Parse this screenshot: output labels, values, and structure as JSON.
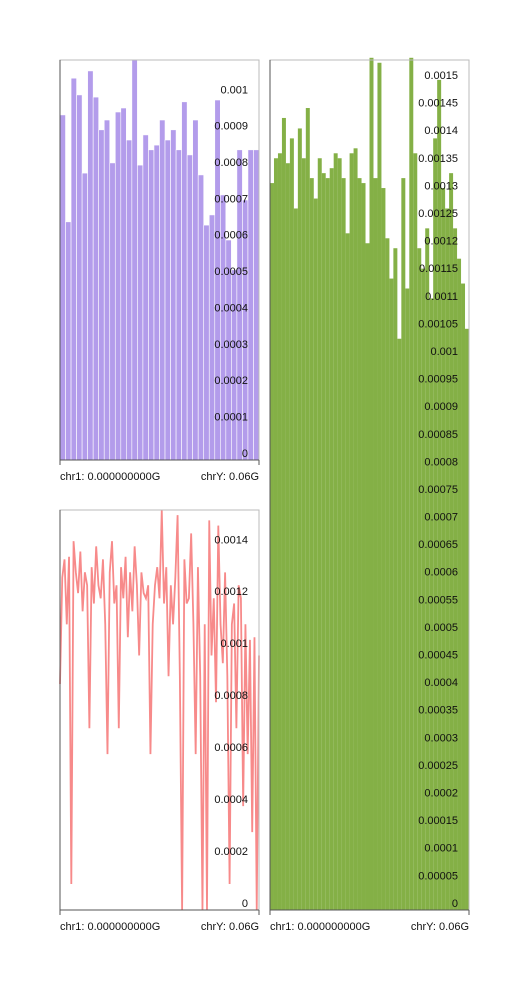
{
  "chart_data": [
    {
      "type": "bar",
      "color": "#b39ceb",
      "values": [
        0.000949,
        0.000655,
        0.00105,
        0.001004,
        0.000789,
        0.00107,
        0.000998,
        0.000908,
        0.000935,
        0.000817,
        0.000957,
        0.000968,
        0.00088,
        0.0011,
        0.000811,
        0.000894,
        0.000853,
        0.000866,
        0.000935,
        0.00088,
        0.000908,
        0.000853,
        0.000985,
        0.000839,
        0.000935,
        0.000784,
        0.000646,
        0.000674,
        0.00099,
        0.000729,
        0.000605,
        0.000523,
        0.000853,
        0.000715,
        0.000853,
        0.000853
      ],
      "ylim": [
        0,
        0.0011
      ],
      "yticks": [
        0,
        0.0001,
        0.0002,
        0.0003,
        0.0004,
        0.0005,
        0.0006,
        0.0007,
        0.0008,
        0.0009,
        0.001
      ],
      "x_labels": [
        "chr1: 0.000000000G",
        "chrY: 0.06G"
      ]
    },
    {
      "type": "line",
      "color": "#f78a8a",
      "values": [
        0.00087,
        0.00128,
        0.00135,
        0.0011,
        0.00136,
        0.0001,
        0.00142,
        0.0013,
        0.00122,
        0.00138,
        0.00115,
        0.0013,
        0.00125,
        0.0007,
        0.00132,
        0.00118,
        0.0014,
        0.00125,
        0.0012,
        0.00135,
        0.0011,
        0.0006,
        0.0013,
        0.00142,
        0.00118,
        0.00125,
        0.0007,
        0.00132,
        0.0012,
        0.00136,
        0.00105,
        0.0013,
        0.00115,
        0.0014,
        0.00125,
        0.00098,
        0.0013,
        0.00122,
        0.0012,
        0.00125,
        0.0006,
        0.0011,
        0.00125,
        0.00132,
        0.0012,
        0.00154,
        0.00118,
        0.00132,
        0.0009,
        0.00125,
        0.0011,
        0.00128,
        0.00152,
        0.0009,
        0,
        0.00135,
        0.00118,
        0.0012,
        0.00145,
        0.0011,
        0.0006,
        0.00132,
        0.0009,
        0,
        0.0011,
        0,
        0.0015,
        0.00098,
        0.0012,
        0.0008,
        0.00148,
        0.0011,
        0.00095,
        0.0013,
        0.0009,
        0.0001,
        0.0011,
        0.00118,
        0.0007,
        0.00125,
        0.0012,
        0.0004,
        0.0011,
        0.0006,
        0.00104,
        0.0003,
        0.00105,
        0,
        0.00098
      ],
      "ylim": [
        0,
        0.00154
      ],
      "yticks": [
        0,
        0.0002,
        0.0004,
        0.0006,
        0.0008,
        0.001,
        0.0012,
        0.0014
      ],
      "x_labels": [
        "chr1: 0.000000000G",
        "chrY: 0.06G"
      ]
    },
    {
      "type": "bar",
      "color": "#84b046",
      "values": [
        0.001317,
        0.001362,
        0.001371,
        0.001435,
        0.001353,
        0.001398,
        0.001271,
        0.001416,
        0.001362,
        0.001453,
        0.001326,
        0.001289,
        0.001362,
        0.001335,
        0.001326,
        0.001344,
        0.001371,
        0.001362,
        0.001326,
        0.001226,
        0.001371,
        0.00138,
        0.001326,
        0.001317,
        0.001208,
        0.001544,
        0.001326,
        0.001535,
        0.001308,
        0.001217,
        0.001144,
        0.001199,
        0.001035,
        0.001326,
        0.001126,
        0.001544,
        0.001371,
        0.001199,
        0.001162,
        0.001235,
        0.001108,
        0.001398,
        0.001504,
        0.001308,
        0.001271,
        0.001335,
        0.001235,
        0.00118,
        0.001135,
        0.001053
      ],
      "ylim": [
        0,
        0.00154
      ],
      "yticks": [
        0,
        5e-05,
        0.0001,
        0.00015,
        0.0002,
        0.00025,
        0.0003,
        0.00035,
        0.0004,
        0.00045,
        0.0005,
        0.00055,
        0.0006,
        0.00065,
        0.0007,
        0.00075,
        0.0008,
        0.00085,
        0.0009,
        0.00095,
        0.001,
        0.00105,
        0.0011,
        0.00115,
        0.0012,
        0.00125,
        0.0013,
        0.00135,
        0.0014,
        0.00145,
        0.0015
      ],
      "x_labels": [
        "chr1: 0.000000000G",
        "chrY: 0.06G"
      ]
    }
  ]
}
